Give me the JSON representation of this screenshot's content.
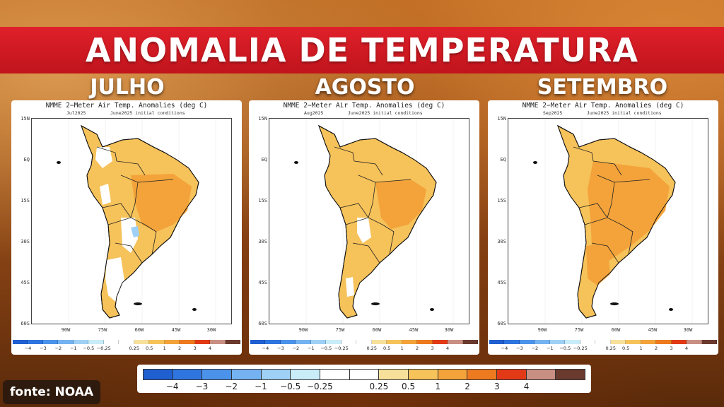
{
  "header": {
    "title": "ANOMALIA DE TEMPERATURA"
  },
  "source": "fonte: NOAA",
  "legend": {
    "colors": [
      "#1f5fd0",
      "#2e75e0",
      "#4b92ea",
      "#74b2f2",
      "#9fd0f6",
      "#c8ecf8",
      "#ffffff",
      "#ffffff",
      "#f7e09a",
      "#f6c25a",
      "#f3a33a",
      "#ee7a1f",
      "#e23a17",
      "#c88f82",
      "#6a3a2e"
    ],
    "labels": [
      "−4",
      "−3",
      "−2",
      "−1",
      "−0.5",
      "−0.25",
      "0.25",
      "0.5",
      "1",
      "2",
      "3",
      "4"
    ],
    "small_labels": [
      "−4",
      "−3",
      "−2",
      "−1",
      "−0.5",
      "−0.25",
      "0.25",
      "0.5",
      "1",
      "2",
      "3",
      "4"
    ]
  },
  "panels": [
    {
      "month": "JULHO",
      "title": "NMME 2−Meter Air Temp. Anomalies (deg C)",
      "sub_left": "Jul2025",
      "sub_right": "June2025  initial conditions",
      "lat_labels": [
        "15N",
        "EQ",
        "15S",
        "30S",
        "45S",
        "60S"
      ],
      "lon_labels": [
        "90W",
        "75W",
        "60W",
        "45W",
        "30W"
      ]
    },
    {
      "month": "AGOSTO",
      "title": "NMME 2−Meter Air Temp. Anomalies (deg C)",
      "sub_left": "Aug2025",
      "sub_right": "June2025  initial conditions",
      "lat_labels": [
        "15N",
        "EQ",
        "15S",
        "30S",
        "45S",
        "60S"
      ],
      "lon_labels": [
        "90W",
        "75W",
        "60W",
        "45W",
        "30W"
      ]
    },
    {
      "month": "SETEMBRO",
      "title": "NMME 2−Meter Air Temp. Anomalies (deg C)",
      "sub_left": "Sep2025",
      "sub_right": "June2025  initial conditions",
      "lat_labels": [
        "15N",
        "EQ",
        "15S",
        "30S",
        "45S",
        "60S"
      ],
      "lon_labels": [
        "90W",
        "75W",
        "60W",
        "45W",
        "30W"
      ]
    }
  ]
}
